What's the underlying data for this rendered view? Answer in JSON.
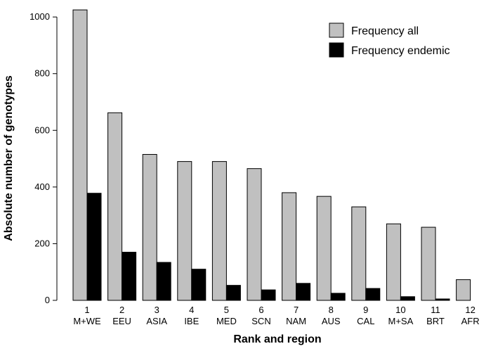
{
  "chart_data": {
    "type": "bar",
    "title": "",
    "xlabel": "Rank and region",
    "ylabel": "Absolute number of genotypes",
    "ylim": [
      0,
      1050
    ],
    "yticks": [
      0,
      200,
      400,
      600,
      800,
      1000
    ],
    "grid": false,
    "legend_position": "top-right",
    "categories": [
      {
        "rank": "1",
        "region": "M+WE"
      },
      {
        "rank": "2",
        "region": "EEU"
      },
      {
        "rank": "3",
        "region": "ASIA"
      },
      {
        "rank": "4",
        "region": "IBE"
      },
      {
        "rank": "5",
        "region": "MED"
      },
      {
        "rank": "6",
        "region": "SCN"
      },
      {
        "rank": "7",
        "region": "NAM"
      },
      {
        "rank": "8",
        "region": "AUS"
      },
      {
        "rank": "9",
        "region": "CAL"
      },
      {
        "rank": "10",
        "region": "M+SA"
      },
      {
        "rank": "11",
        "region": "BRT"
      },
      {
        "rank": "12",
        "region": "AFR"
      }
    ],
    "series": [
      {
        "name": "Frequency all",
        "color": "#c0c0c0",
        "values": [
          1025,
          662,
          515,
          490,
          490,
          465,
          380,
          367,
          330,
          270,
          258,
          73
        ]
      },
      {
        "name": "Frequency endemic",
        "color": "#000000",
        "values": [
          378,
          170,
          134,
          110,
          53,
          37,
          60,
          25,
          42,
          13,
          5,
          0
        ]
      }
    ]
  }
}
